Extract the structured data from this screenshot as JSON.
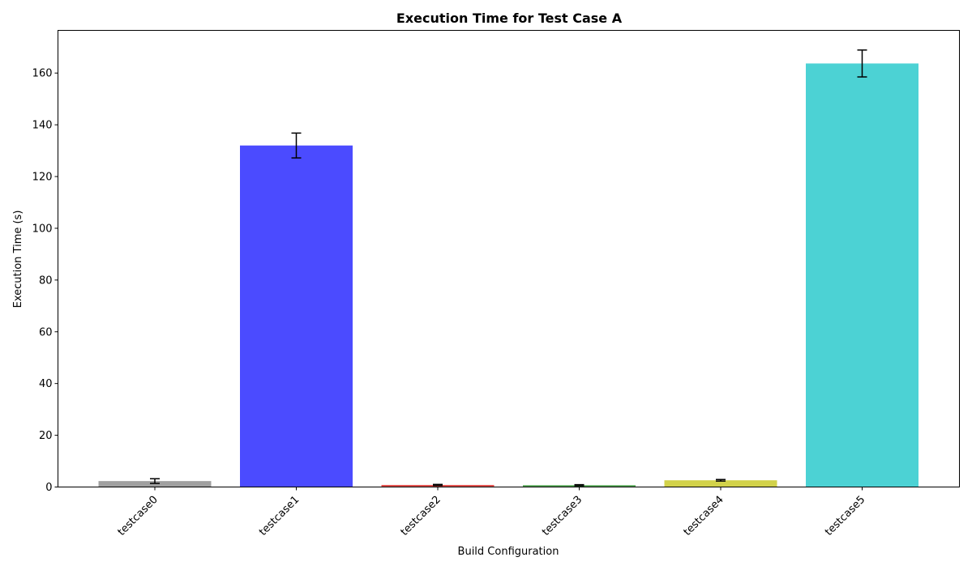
{
  "chart_data": {
    "type": "bar",
    "title": "Execution Time for Test Case A",
    "xlabel": "Build Configuration",
    "ylabel": "Execution Time (s)",
    "categories": [
      "testcase0",
      "testcase1",
      "testcase2",
      "testcase3",
      "testcase4",
      "testcase5"
    ],
    "values": [
      2.3,
      132.0,
      0.8,
      0.7,
      2.6,
      163.7
    ],
    "errors": [
      0.9,
      4.8,
      0.2,
      0.2,
      0.3,
      5.2
    ],
    "colors": [
      "#a0a0a0",
      "#4b4bff",
      "#e2524f",
      "#55a855",
      "#d2d24a",
      "#4cd2d4"
    ],
    "ylim": [
      0,
      176.5
    ],
    "yticks": [
      0,
      20,
      40,
      60,
      80,
      100,
      120,
      140,
      160
    ],
    "grid": false,
    "legend": "none"
  }
}
